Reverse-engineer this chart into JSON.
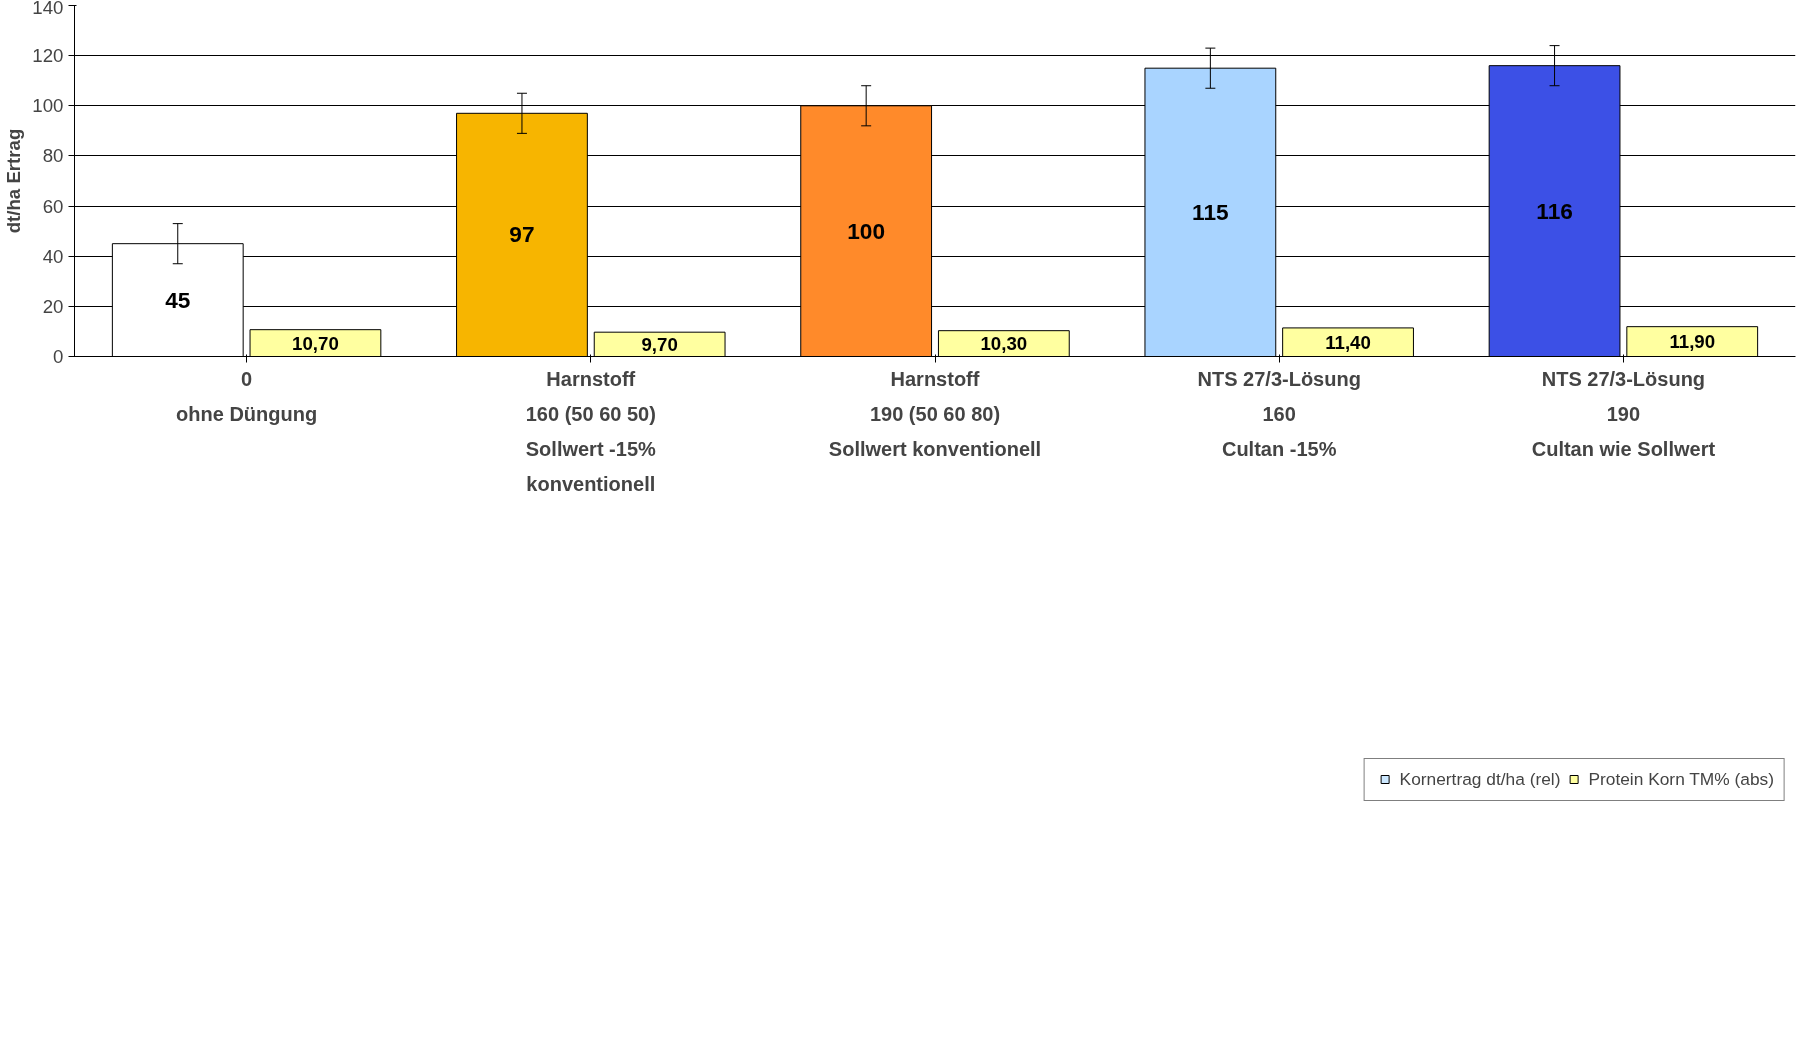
{
  "chart_data": {
    "type": "bar",
    "ylabel": "dt/ha Ertrag",
    "categories": [
      "0\nohne Düngung",
      "Harnstoff\n160 (50 60 50)\nSollwert -15%\nkonventionell",
      "Harnstoff\n190 (50 60 80)\nSollwert konventionell",
      "NTS 27/3-Lösung\n160\nCultan -15%",
      "NTS 27/3-Lösung\n190\nCultan wie Sollwert"
    ],
    "series": [
      {
        "name": "Kornertrag dt/ha (rel)",
        "color": "#cce8ff",
        "colors": [
          "#ffffff",
          "#f7b500",
          "#ff8a2a",
          "#a9d4ff",
          "#3c50e6"
        ],
        "values": [
          45,
          97,
          100,
          115,
          116
        ],
        "errors": [
          8,
          8,
          8,
          8,
          8
        ],
        "value_labels": [
          "45",
          "97",
          "100",
          "115",
          "116"
        ]
      },
      {
        "name": "Protein Korn TM% (abs)",
        "color": "#ffffa0",
        "values": [
          10.7,
          9.7,
          10.3,
          11.4,
          11.9
        ],
        "value_labels": [
          "10,70",
          "9,70",
          "10,30",
          "11,40",
          "11,90"
        ]
      }
    ],
    "ylim": [
      0,
      140
    ],
    "yticks": [
      0,
      20,
      40,
      60,
      80,
      100,
      120,
      140
    ],
    "grid": "y",
    "legend": "bottom"
  }
}
